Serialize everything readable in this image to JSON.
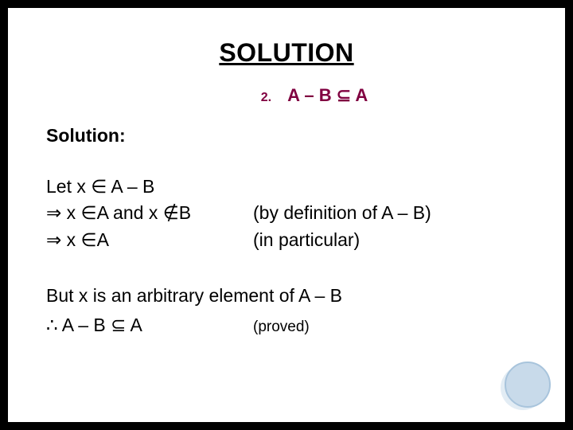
{
  "title": "SOLUTION",
  "problem": {
    "num": "2.",
    "statement": "A – B ⊆ A"
  },
  "sectionLabel": "Solution:",
  "steps": {
    "line1": "Let x ∈ A – B",
    "line2_left": "⇒   x ∈A and x ∉B",
    "line2_right": "(by definition of A – B)",
    "line3_left": "⇒   x ∈A",
    "line3_right": "(in particular)"
  },
  "conclusion": "But x is an arbitrary element of A – B",
  "therefore": {
    "left": "∴    A – B ⊆ A",
    "right": "(proved)"
  },
  "style": {
    "background": "#ffffff",
    "accent_color": "#800040",
    "text_color": "#000000",
    "circle_fill": "#c8daea",
    "circle_border": "#a8c4dc",
    "title_fontsize": 32,
    "body_fontsize": 23
  }
}
